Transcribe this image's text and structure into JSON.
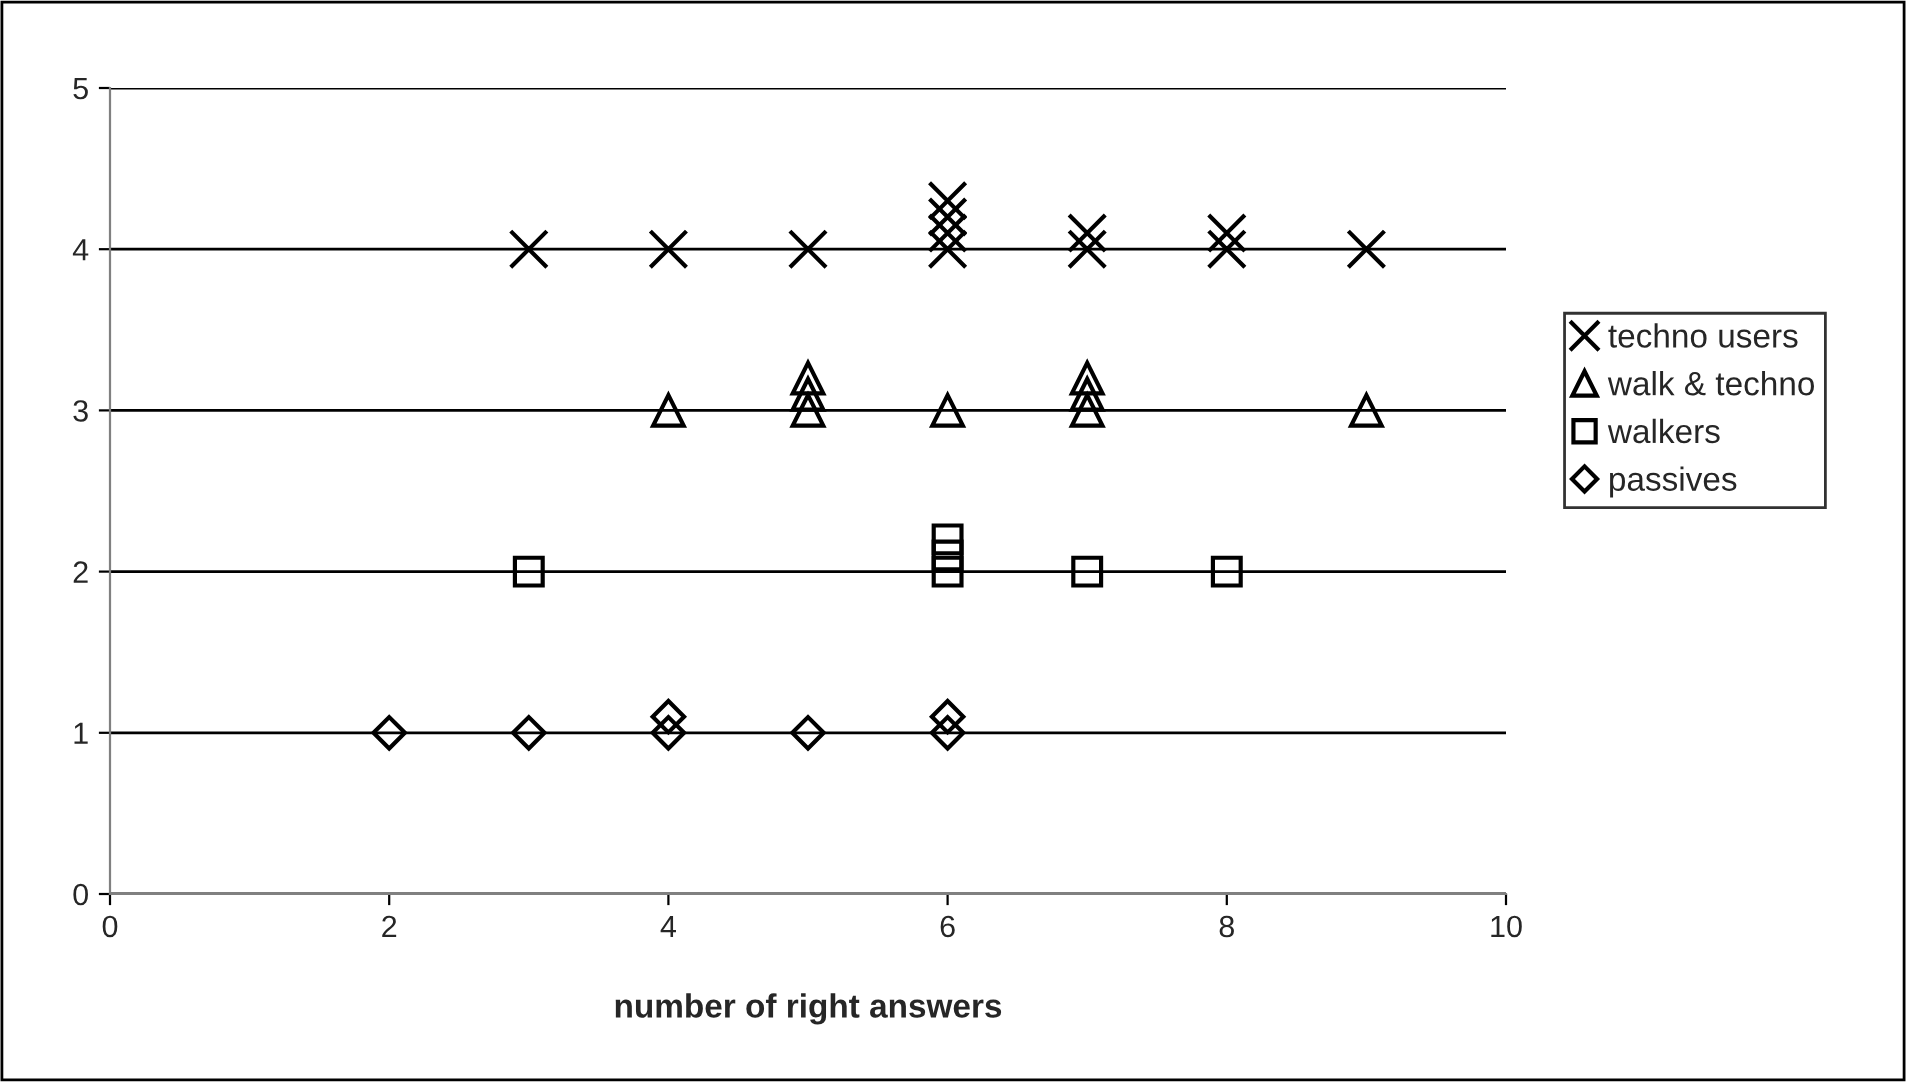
{
  "chart_data": {
    "type": "scatter",
    "xlabel": "number of right answers",
    "xlim": [
      0,
      10
    ],
    "xticks": [
      0,
      2,
      4,
      6,
      8,
      10
    ],
    "ylim": [
      0,
      5
    ],
    "yticks": [
      0,
      1,
      2,
      3,
      4,
      5
    ],
    "grid": "y",
    "legend": "right",
    "series": [
      {
        "name": "techno users",
        "color": "#000000",
        "marker": "cross",
        "x": [
          3,
          4,
          5,
          6,
          6,
          6,
          6,
          7,
          7,
          8,
          8,
          9
        ],
        "values": [
          4,
          4,
          4,
          4,
          4.1,
          4.2,
          4.3,
          4,
          4.1,
          4,
          4.1,
          4
        ]
      },
      {
        "name": "walk & techno",
        "color": "#000000",
        "marker": "triangle",
        "x": [
          4,
          5,
          5,
          5,
          6,
          7,
          7,
          7,
          9
        ],
        "values": [
          3,
          3,
          3.1,
          3.2,
          3,
          3,
          3.1,
          3.2,
          3
        ]
      },
      {
        "name": "walkers",
        "color": "#000000",
        "marker": "square",
        "x": [
          3,
          6,
          6,
          6,
          7,
          8
        ],
        "values": [
          2,
          2,
          2.1,
          2.2,
          2,
          2
        ]
      },
      {
        "name": "passives",
        "color": "#000000",
        "marker": "diamond",
        "x": [
          2,
          3,
          4,
          4,
          5,
          6,
          6
        ],
        "values": [
          1,
          1,
          1,
          1.1,
          1,
          1,
          1.1
        ]
      }
    ]
  }
}
